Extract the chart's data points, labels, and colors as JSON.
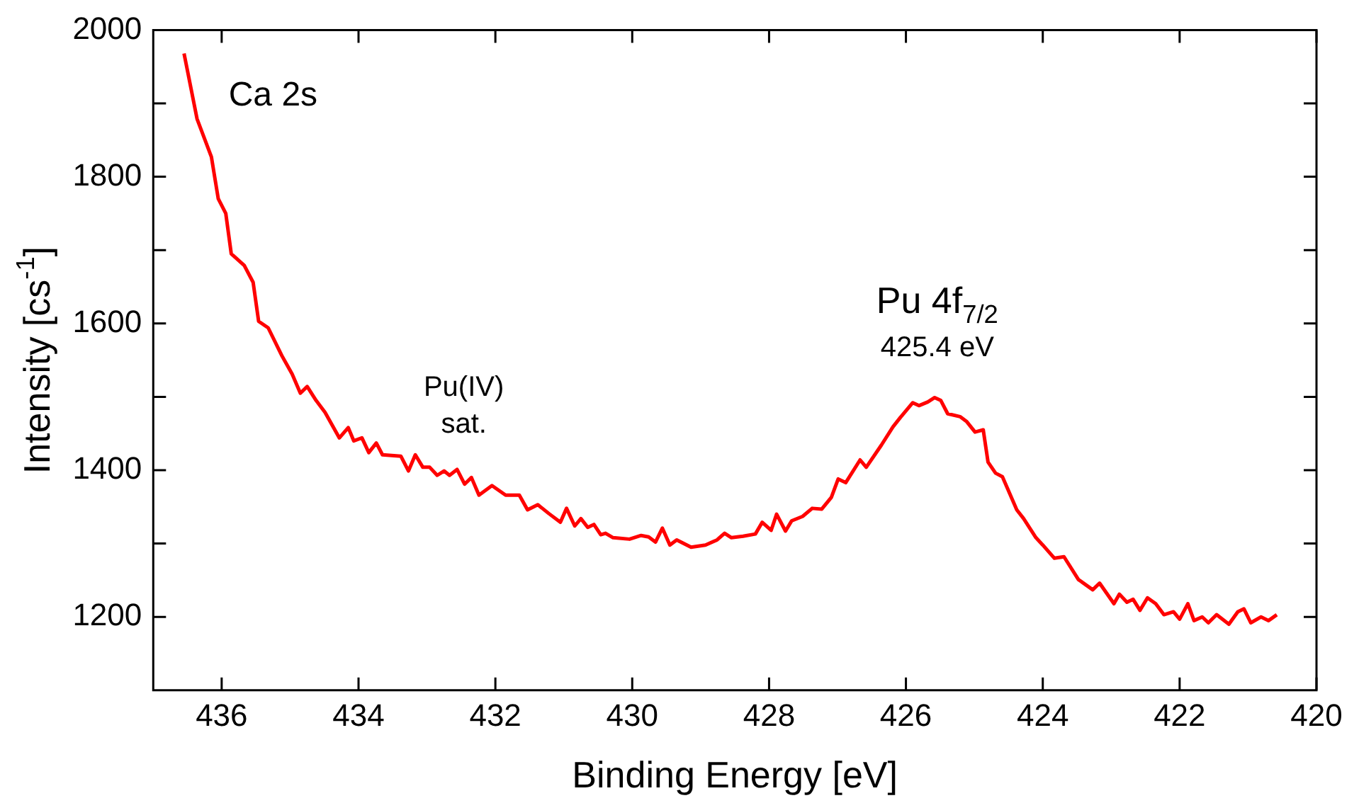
{
  "chart_data": {
    "type": "line",
    "xlabel": "Binding Energy [eV]",
    "ylabel": "Intensity [cs$^{-1}$]",
    "xlim": [
      437,
      420
    ],
    "xticks": [
      436,
      434,
      432,
      430,
      428,
      426,
      424,
      422,
      420
    ],
    "ylim": [
      1100,
      2000
    ],
    "yticks": [
      1200,
      {
        "value": 1300,
        "label": null
      },
      1400,
      {
        "value": 1500,
        "label": null
      },
      1600,
      {
        "value": 1700,
        "label": null
      },
      1800,
      {
        "value": 1900,
        "label": null
      },
      2000
    ],
    "grid": false,
    "legend": false,
    "marker": "none",
    "line_style": "solid",
    "annotations": [
      "Ca 2s",
      "Pu(IV)\nsat.",
      "Pu 4f$_{7/2}$",
      "425.4 eV"
    ],
    "series": [
      {
        "color": "#ff0000",
        "x": [
          436.55,
          436.36,
          436.15,
          436.05,
          435.94,
          435.86,
          435.67,
          435.54,
          435.46,
          435.32,
          435.12,
          434.97,
          434.85,
          434.75,
          434.62,
          434.49,
          434.28,
          434.15,
          434.07,
          433.95,
          433.85,
          433.74,
          433.65,
          433.38,
          433.27,
          433.17,
          433.06,
          432.96,
          432.85,
          432.75,
          432.67,
          432.56,
          432.45,
          432.35,
          432.24,
          432.05,
          431.85,
          431.65,
          431.53,
          431.38,
          431.22,
          431.05,
          430.96,
          430.84,
          430.75,
          430.65,
          430.56,
          430.46,
          430.39,
          430.28,
          430.04,
          429.87,
          429.76,
          429.66,
          429.56,
          429.45,
          429.35,
          429.14,
          428.93,
          428.76,
          428.65,
          428.55,
          428.38,
          428.2,
          428.1,
          427.97,
          427.89,
          427.76,
          427.67,
          427.51,
          427.37,
          427.23,
          427.09,
          426.99,
          426.88,
          426.67,
          426.58,
          426.36,
          426.19,
          426.08,
          425.9,
          425.81,
          425.68,
          425.58,
          425.49,
          425.39,
          425.21,
          425.11,
          424.99,
          424.87,
          424.8,
          424.69,
          424.59,
          424.38,
          424.28,
          424.1,
          424.0,
          423.83,
          423.69,
          423.48,
          423.27,
          423.17,
          422.96,
          422.88,
          422.77,
          422.68,
          422.58,
          422.47,
          422.35,
          422.23,
          422.09,
          422.0,
          421.88,
          421.79,
          421.67,
          421.58,
          421.46,
          421.28,
          421.15,
          421.06,
          420.96,
          420.81,
          420.7,
          420.58
        ],
        "values": [
          1968,
          1879,
          1827,
          1770,
          1750,
          1695,
          1679,
          1656,
          1603,
          1594,
          1556,
          1531,
          1505,
          1514,
          1495,
          1479,
          1444,
          1458,
          1440,
          1444,
          1424,
          1437,
          1421,
          1419,
          1399,
          1421,
          1404,
          1404,
          1393,
          1399,
          1393,
          1401,
          1381,
          1390,
          1366,
          1379,
          1366,
          1366,
          1346,
          1353,
          1341,
          1329,
          1348,
          1324,
          1334,
          1322,
          1326,
          1312,
          1314,
          1308,
          1306,
          1311,
          1309,
          1302,
          1321,
          1298,
          1305,
          1295,
          1298,
          1305,
          1314,
          1308,
          1310,
          1313,
          1329,
          1318,
          1340,
          1317,
          1331,
          1337,
          1348,
          1347,
          1363,
          1388,
          1383,
          1414,
          1404,
          1434,
          1459,
          1472,
          1492,
          1488,
          1493,
          1499,
          1495,
          1477,
          1473,
          1466,
          1452,
          1455,
          1411,
          1396,
          1391,
          1346,
          1334,
          1308,
          1298,
          1280,
          1282,
          1251,
          1237,
          1246,
          1218,
          1231,
          1220,
          1224,
          1209,
          1226,
          1218,
          1203,
          1207,
          1197,
          1218,
          1195,
          1200,
          1192,
          1203,
          1190,
          1207,
          1211,
          1192,
          1200,
          1195,
          1203
        ]
      }
    ]
  }
}
